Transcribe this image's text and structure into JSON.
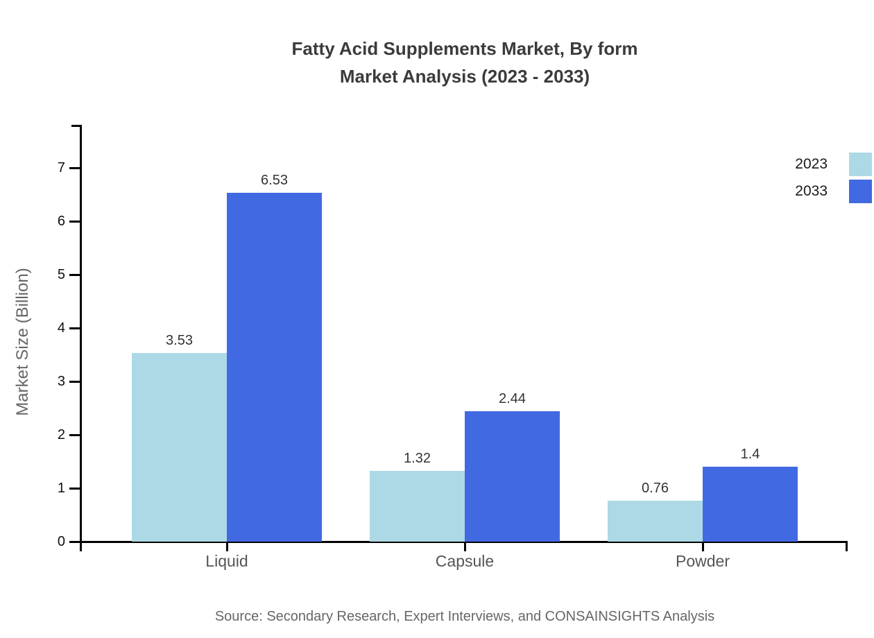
{
  "title": {
    "line1": "Fatty Acid Supplements Market, By form",
    "line2": "Market Analysis (2023 - 2033)"
  },
  "source": "Source: Secondary Research, Expert Interviews, and CONSAINSIGHTS Analysis",
  "chart_data": {
    "type": "bar",
    "title": "Fatty Acid Supplements Market, By form Market Analysis (2023 - 2033)",
    "categories": [
      "Liquid",
      "Capsule",
      "Powder"
    ],
    "series": [
      {
        "name": "2023",
        "color": "#ADD8E6",
        "values": [
          3.53,
          1.32,
          0.76
        ]
      },
      {
        "name": "2033",
        "color": "#4169E1",
        "values": [
          6.53,
          2.44,
          1.4
        ]
      }
    ],
    "xlabel": "",
    "ylabel": "Market Size (Billion)",
    "ylim": [
      0,
      7.8
    ],
    "yticks": [
      0,
      1,
      2,
      3,
      4,
      5,
      6,
      7
    ],
    "grid": false,
    "data_labels": true,
    "legend_position": "top-right"
  }
}
